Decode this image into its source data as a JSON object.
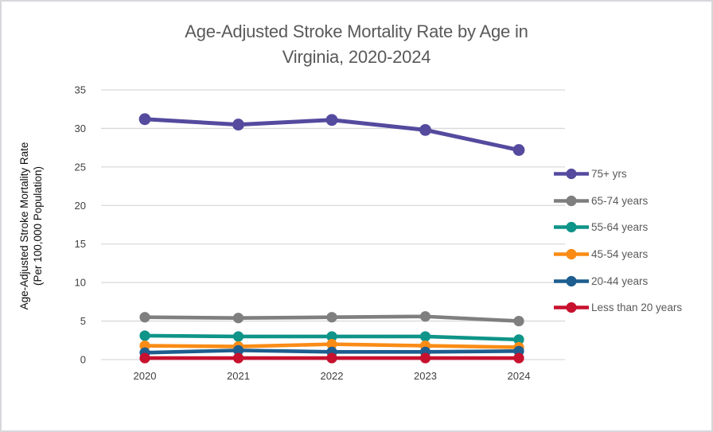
{
  "window": {
    "background": "#ffffff",
    "border_color": "#d7d7dc"
  },
  "chart_data": {
    "type": "line",
    "title": "Age-Adjusted Stroke Mortality Rate by Age in Virginia, 2020-2024",
    "title_lines": [
      "Age-Adjusted Stroke Mortality Rate by Age in",
      "Virginia, 2020-2024"
    ],
    "ylabel": "Age-Adjusted Stroke Mortality Rate (Per 100,000 Population)",
    "ylabel_lines": [
      "Age-Adjusted Stroke Mortality Rate",
      "(Per 100,000 Population)"
    ],
    "xlabel": "",
    "categories": [
      "2020",
      "2021",
      "2022",
      "2023",
      "2024"
    ],
    "y_ticks": [
      0,
      5,
      10,
      15,
      20,
      25,
      30,
      35
    ],
    "ylim": [
      0,
      35
    ],
    "grid": true,
    "legend_position": "right",
    "series": [
      {
        "name": "75+ yrs",
        "color": "#544a9e",
        "values": [
          31.2,
          30.5,
          31.1,
          29.8,
          27.2
        ]
      },
      {
        "name": "65-74 years",
        "color": "#7f7f7f",
        "values": [
          5.5,
          5.4,
          5.5,
          5.6,
          5.0
        ]
      },
      {
        "name": "55-64 years",
        "color": "#0e9488",
        "values": [
          3.1,
          3.0,
          3.0,
          3.0,
          2.6
        ]
      },
      {
        "name": "45-54 years",
        "color": "#fa8c16",
        "values": [
          1.8,
          1.7,
          2.0,
          1.8,
          1.6
        ]
      },
      {
        "name": "20-44 years",
        "color": "#1d5e8f",
        "values": [
          0.9,
          1.2,
          1.0,
          1.0,
          1.1
        ]
      },
      {
        "name": "Less than 20 years",
        "color": "#c7112e",
        "values": [
          0.2,
          0.2,
          0.2,
          0.2,
          0.2
        ]
      }
    ],
    "colors": {
      "title_text": "#595959",
      "axis_title_text": "#0d0d0d",
      "tick_text": "#3f3f3f",
      "gridline": "#d9d9d9",
      "legend_text": "#595959"
    }
  }
}
